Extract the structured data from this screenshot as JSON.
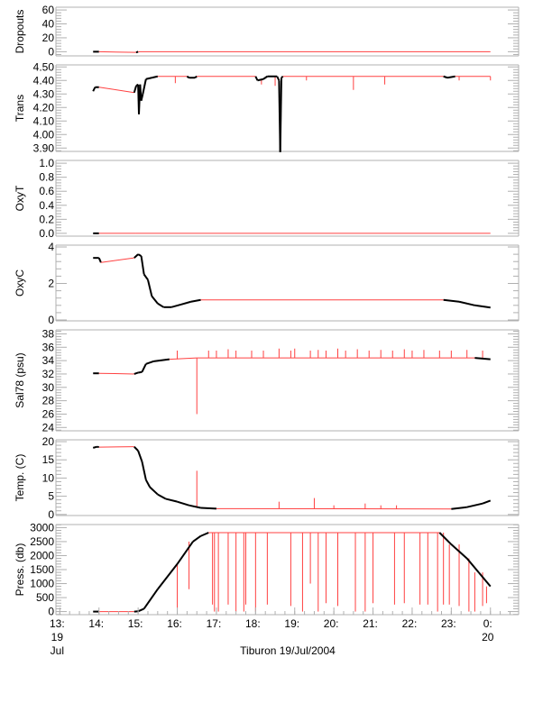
{
  "chart_data": [
    {
      "type": "line",
      "ylabel": "Dropouts",
      "ylim": [
        -6,
        64
      ],
      "yticks": [
        0,
        20,
        40,
        60
      ],
      "yticklabels": [
        "0",
        "20",
        "40",
        "60"
      ],
      "series": [
        [
          13.85,
          0
        ],
        [
          14.0,
          0
        ],
        [
          14.95,
          -1
        ],
        [
          15.0,
          0
        ],
        [
          24.0,
          0
        ]
      ],
      "spikes": []
    },
    {
      "type": "line",
      "ylabel": "Trans",
      "ylim": [
        3.875,
        4.515
      ],
      "yticks": [
        3.9,
        4.0,
        4.1,
        4.2,
        4.3,
        4.4,
        4.5
      ],
      "yticklabels": [
        "3.90",
        "4.00",
        "4.10",
        "4.20",
        "4.30",
        "4.40",
        "4.50"
      ],
      "series": [
        [
          13.85,
          4.32
        ],
        [
          13.9,
          4.35
        ],
        [
          14.0,
          4.35
        ],
        [
          14.9,
          4.31
        ],
        [
          14.95,
          4.36
        ],
        [
          15.0,
          4.37
        ],
        [
          15.02,
          4.15
        ],
        [
          15.05,
          4.37
        ],
        [
          15.08,
          4.25
        ],
        [
          15.12,
          4.3
        ],
        [
          15.2,
          4.41
        ],
        [
          15.35,
          4.42
        ],
        [
          15.5,
          4.43
        ],
        [
          16.25,
          4.43
        ],
        [
          16.3,
          4.42
        ],
        [
          16.45,
          4.42
        ],
        [
          16.5,
          4.43
        ],
        [
          18.0,
          4.43
        ],
        [
          18.05,
          4.4
        ],
        [
          18.2,
          4.41
        ],
        [
          18.3,
          4.43
        ],
        [
          18.55,
          4.43
        ],
        [
          18.6,
          4.4
        ],
        [
          18.63,
          3.87
        ],
        [
          18.66,
          4.42
        ],
        [
          18.7,
          4.43
        ],
        [
          22.8,
          4.43
        ],
        [
          22.9,
          4.42
        ],
        [
          23.1,
          4.43
        ],
        [
          24.0,
          4.43
        ]
      ],
      "spikes": [
        [
          15.95,
          4.38
        ],
        [
          18.15,
          4.37
        ],
        [
          18.5,
          4.36
        ],
        [
          19.3,
          4.4
        ],
        [
          20.5,
          4.33
        ],
        [
          21.3,
          4.37
        ],
        [
          23.2,
          4.4
        ],
        [
          24.0,
          4.4
        ]
      ]
    },
    {
      "type": "line",
      "ylabel": "OxyT",
      "ylim": [
        -0.04,
        1.04
      ],
      "yticks": [
        0,
        0.2,
        0.4,
        0.6,
        0.8,
        1.0
      ],
      "yticklabels": [
        "0.0",
        "0.2",
        "0.4",
        "0.6",
        "0.8",
        "1.0"
      ],
      "series": [
        [
          13.85,
          0
        ],
        [
          14.0,
          0
        ],
        [
          14.95,
          0
        ],
        [
          24.0,
          0
        ]
      ],
      "spikes": []
    },
    {
      "type": "line",
      "ylabel": "OxyC",
      "ylim": [
        -0.05,
        4.1
      ],
      "yticks": [
        0,
        2,
        4
      ],
      "yticklabels": [
        "0",
        "2",
        "4"
      ],
      "series": [
        [
          13.85,
          3.4
        ],
        [
          14.0,
          3.4
        ],
        [
          14.05,
          3.15
        ],
        [
          14.9,
          3.4
        ],
        [
          15.0,
          3.6
        ],
        [
          15.08,
          3.5
        ],
        [
          15.15,
          2.5
        ],
        [
          15.25,
          2.2
        ],
        [
          15.35,
          1.3
        ],
        [
          15.5,
          0.9
        ],
        [
          15.65,
          0.7
        ],
        [
          15.85,
          0.7
        ],
        [
          16.1,
          0.85
        ],
        [
          16.35,
          1.0
        ],
        [
          16.6,
          1.1
        ],
        [
          22.8,
          1.1
        ],
        [
          23.2,
          1.0
        ],
        [
          23.6,
          0.8
        ],
        [
          24.0,
          0.68
        ]
      ],
      "spikes": []
    },
    {
      "type": "line",
      "ylabel": "Sal78 (psu)",
      "ylim": [
        23.5,
        38.6
      ],
      "yticks": [
        24,
        26,
        28,
        30,
        32,
        34,
        36,
        38
      ],
      "yticklabels": [
        "24",
        "26",
        "28",
        "30",
        "32",
        "34",
        "36",
        "38"
      ],
      "series": [
        [
          13.85,
          32.1
        ],
        [
          14.0,
          32.1
        ],
        [
          14.9,
          32.0
        ],
        [
          15.0,
          32.2
        ],
        [
          15.1,
          32.3
        ],
        [
          15.2,
          33.5
        ],
        [
          15.4,
          33.9
        ],
        [
          15.8,
          34.2
        ],
        [
          16.5,
          34.4
        ],
        [
          23.0,
          34.4
        ],
        [
          23.6,
          34.4
        ],
        [
          24.0,
          34.2
        ]
      ],
      "spikes": [
        [
          16.0,
          35.5
        ],
        [
          16.5,
          26.0
        ],
        [
          16.8,
          35.5
        ],
        [
          17.0,
          35.5
        ],
        [
          17.3,
          35.7
        ],
        [
          17.5,
          35.5
        ],
        [
          17.9,
          35.5
        ],
        [
          18.2,
          35.5
        ],
        [
          18.6,
          35.8
        ],
        [
          18.9,
          35.5
        ],
        [
          19.0,
          35.8
        ],
        [
          19.4,
          35.5
        ],
        [
          19.6,
          35.6
        ],
        [
          19.8,
          35.5
        ],
        [
          20.1,
          35.8
        ],
        [
          20.3,
          35.5
        ],
        [
          20.6,
          35.7
        ],
        [
          20.9,
          35.5
        ],
        [
          21.2,
          35.6
        ],
        [
          21.5,
          35.5
        ],
        [
          21.8,
          35.7
        ],
        [
          22.0,
          35.5
        ],
        [
          22.3,
          35.6
        ],
        [
          22.7,
          35.5
        ],
        [
          23.0,
          35.5
        ],
        [
          23.4,
          35.6
        ],
        [
          23.8,
          35.5
        ]
      ]
    },
    {
      "type": "line",
      "ylabel": "Temp. (C)",
      "ylim": [
        -0.3,
        20.5
      ],
      "yticks": [
        0,
        5,
        10,
        15,
        20
      ],
      "yticklabels": [
        "0",
        "5",
        "10",
        "15",
        "20"
      ],
      "series": [
        [
          13.85,
          18.3
        ],
        [
          13.95,
          18.6
        ],
        [
          14.0,
          18.5
        ],
        [
          14.9,
          18.6
        ],
        [
          15.0,
          17.5
        ],
        [
          15.1,
          14.5
        ],
        [
          15.2,
          9.5
        ],
        [
          15.3,
          7.5
        ],
        [
          15.5,
          5.5
        ],
        [
          15.7,
          4.3
        ],
        [
          16.0,
          3.5
        ],
        [
          16.3,
          2.5
        ],
        [
          16.6,
          1.8
        ],
        [
          17.0,
          1.6
        ],
        [
          23.0,
          1.5
        ],
        [
          23.4,
          2.0
        ],
        [
          23.8,
          3.0
        ],
        [
          24.0,
          3.8
        ]
      ],
      "spikes": [
        [
          16.5,
          12.0
        ],
        [
          18.6,
          3.5
        ],
        [
          19.5,
          4.5
        ],
        [
          20.0,
          2.5
        ],
        [
          20.8,
          3.0
        ],
        [
          21.2,
          2.5
        ],
        [
          21.6,
          2.5
        ]
      ]
    },
    {
      "type": "line",
      "ylabel": "Press. (db)",
      "ylim": [
        -110,
        3110
      ],
      "yticks": [
        0,
        500,
        1000,
        1500,
        2000,
        2500,
        3000
      ],
      "yticklabels": [
        "0",
        "500",
        "1000",
        "1500",
        "2000",
        "2500",
        "3000"
      ],
      "series": [
        [
          13.85,
          0
        ],
        [
          14.0,
          0
        ],
        [
          14.9,
          0
        ],
        [
          15.0,
          10
        ],
        [
          15.15,
          100
        ],
        [
          15.5,
          800
        ],
        [
          16.0,
          1700
        ],
        [
          16.4,
          2500
        ],
        [
          16.6,
          2700
        ],
        [
          16.8,
          2820
        ],
        [
          22.7,
          2820
        ],
        [
          23.0,
          2400
        ],
        [
          23.4,
          1900
        ],
        [
          23.7,
          1400
        ],
        [
          24.0,
          900
        ]
      ],
      "spikes": [
        [
          16.0,
          100
        ],
        [
          16.3,
          800
        ],
        [
          16.9,
          250
        ],
        [
          16.95,
          0
        ],
        [
          17.05,
          0
        ],
        [
          17.3,
          250
        ],
        [
          17.5,
          0
        ],
        [
          17.7,
          0
        ],
        [
          17.75,
          250
        ],
        [
          18.0,
          0
        ],
        [
          18.3,
          250
        ],
        [
          18.9,
          200
        ],
        [
          19.2,
          0
        ],
        [
          19.4,
          1000
        ],
        [
          19.6,
          0
        ],
        [
          19.8,
          300
        ],
        [
          20.1,
          200
        ],
        [
          20.55,
          0
        ],
        [
          20.8,
          0
        ],
        [
          21.0,
          300
        ],
        [
          21.55,
          250
        ],
        [
          21.8,
          300
        ],
        [
          22.2,
          250
        ],
        [
          22.4,
          250
        ],
        [
          22.65,
          0
        ],
        [
          22.8,
          250
        ],
        [
          22.95,
          250
        ],
        [
          23.2,
          200
        ],
        [
          23.45,
          0
        ],
        [
          23.6,
          0
        ],
        [
          23.8,
          200
        ],
        [
          23.9,
          300
        ]
      ]
    }
  ],
  "xaxis": {
    "xlim": [
      12.9,
      24.72
    ],
    "ticks": [
      {
        "h": 13,
        "l1": "13:",
        "l2": "19",
        "l3": "Jul"
      },
      {
        "h": 14,
        "l1": "14:"
      },
      {
        "h": 15,
        "l1": "15:"
      },
      {
        "h": 16,
        "l1": "16:"
      },
      {
        "h": 17,
        "l1": "17:"
      },
      {
        "h": 18,
        "l1": "18:"
      },
      {
        "h": 19,
        "l1": "19:"
      },
      {
        "h": 20,
        "l1": "20:"
      },
      {
        "h": 21,
        "l1": "21:"
      },
      {
        "h": 22,
        "l1": "22:"
      },
      {
        "h": 23,
        "l1": "23:"
      },
      {
        "h": 24,
        "l1": "0:",
        "l2": "20"
      }
    ],
    "title": "Tiburon 19/Jul/2004"
  },
  "colors": {
    "data": "#000000",
    "gap": "#ff4040",
    "axis": "#b0b0b0"
  }
}
